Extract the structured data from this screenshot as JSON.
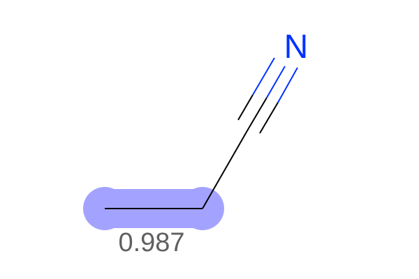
{
  "molecule": {
    "atoms": [
      {
        "id": "c1",
        "element": "C",
        "label": ""
      },
      {
        "id": "c2",
        "element": "C",
        "label": ""
      },
      {
        "id": "n1",
        "element": "N",
        "label": "N"
      }
    ],
    "bonds": [
      {
        "from": "c1",
        "to": "c2",
        "order": 1
      },
      {
        "from": "c2",
        "to": "n1",
        "order": 3
      }
    ],
    "highlight": {
      "atoms": [
        "c1",
        "c2"
      ],
      "bonds": [
        "c1-c2"
      ],
      "score": "0.987"
    }
  },
  "colors": {
    "bond": "#000000",
    "nitrogen": "#0033ff",
    "highlight": "#a3a3ff",
    "score_text": "#606060",
    "background": "#ffffff"
  }
}
